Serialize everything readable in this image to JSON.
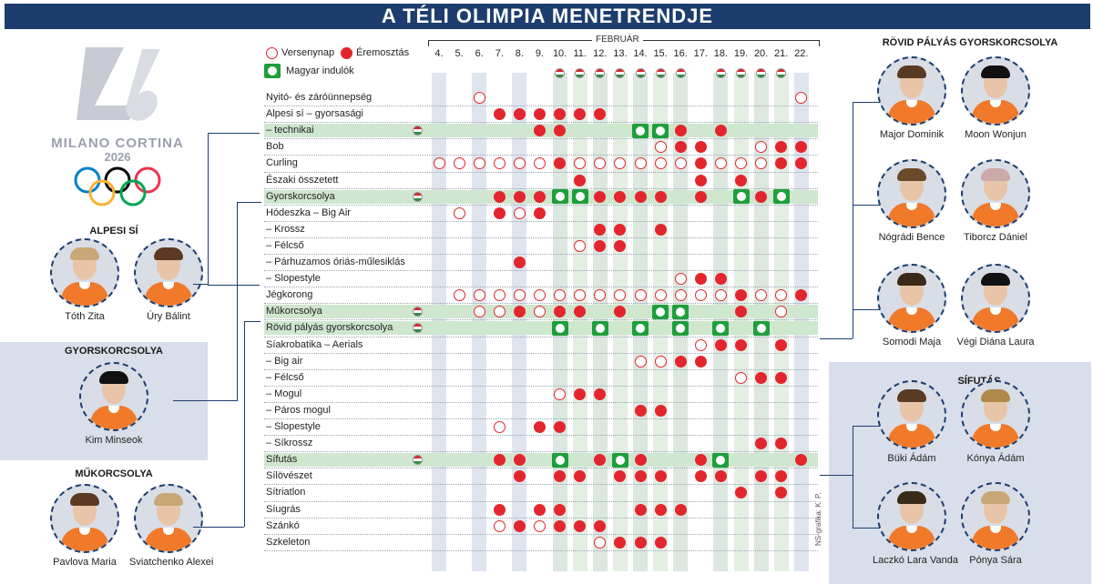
{
  "title": "A TÉLI OLIMPIA MENETRENDJE",
  "logo": {
    "line1": "MILANO CORTINA",
    "line2": "2026"
  },
  "legend": {
    "competition_day": "Versenynap",
    "medal_event": "Éremosztás",
    "hungarian": "Magyar indulók"
  },
  "month": "FEBRUÁR",
  "days": [
    "4.",
    "5.",
    "6.",
    "7.",
    "8.",
    "9.",
    "10.",
    "11.",
    "12.",
    "13.",
    "14.",
    "15.",
    "16.",
    "17.",
    "18.",
    "19.",
    "20.",
    "21.",
    "22."
  ],
  "credit": "NS-grafika: K. P.",
  "colors": {
    "title_bg": "#1d3d6e",
    "medal": "#e3262d",
    "hungarian": "#1f9e3c",
    "row_highlight": "#cfe6cf"
  },
  "events": [
    {
      "name": "Nyitó- és záróünnepség",
      "hu": false,
      "marks": {
        "6.": "c",
        "22.": "c"
      }
    },
    {
      "name": "Alpesi sí – gyorsasági",
      "hu": false,
      "marks": {
        "7.": "f",
        "8.": "f",
        "9.": "f",
        "10.": "f",
        "11.": "f",
        "12.": "f"
      }
    },
    {
      "name": "– technikai",
      "hu": true,
      "marks": {
        "9.": "f",
        "10.": "f",
        "14.": "h",
        "15.": "h",
        "16.": "f",
        "18.": "f"
      }
    },
    {
      "name": "Bob",
      "hu": false,
      "marks": {
        "15.": "c",
        "16.": "f",
        "17.": "f",
        "20.": "c",
        "21.": "f",
        "22.": "f"
      }
    },
    {
      "name": "Curling",
      "hu": false,
      "marks": {
        "4.": "c",
        "5.": "c",
        "6.": "c",
        "7.": "c",
        "8.": "c",
        "9.": "c",
        "10.": "f",
        "11.": "c",
        "12.": "c",
        "13.": "c",
        "14.": "c",
        "15.": "c",
        "16.": "c",
        "17.": "f",
        "18.": "c",
        "19.": "c",
        "20.": "c",
        "21.": "f",
        "22.": "f"
      }
    },
    {
      "name": "Északi összetett",
      "hu": false,
      "marks": {
        "11.": "f",
        "17.": "f",
        "19.": "f"
      }
    },
    {
      "name": "Gyorskorcsolya",
      "hu": true,
      "marks": {
        "7.": "f",
        "8.": "f",
        "9.": "f",
        "10.": "h",
        "11.": "h",
        "12.": "f",
        "13.": "f",
        "14.": "f",
        "15.": "f",
        "17.": "f",
        "19.": "h",
        "20.": "f",
        "21.": "h"
      }
    },
    {
      "name": "Hódeszka – Big Air",
      "hu": false,
      "marks": {
        "5.": "c",
        "7.": "f",
        "8.": "c",
        "9.": "f"
      }
    },
    {
      "name": "– Krossz",
      "hu": false,
      "marks": {
        "12.": "f",
        "13.": "f",
        "15.": "f"
      }
    },
    {
      "name": "– Félcső",
      "hu": false,
      "marks": {
        "11.": "c",
        "12.": "f",
        "13.": "f"
      }
    },
    {
      "name": "– Párhuzamos óriás-műlesiklás",
      "hu": false,
      "marks": {
        "8.": "f"
      }
    },
    {
      "name": "– Slopestyle",
      "hu": false,
      "marks": {
        "16.": "c",
        "17.": "f",
        "18.": "f"
      }
    },
    {
      "name": "Jégkorong",
      "hu": false,
      "marks": {
        "5.": "c",
        "6.": "c",
        "7.": "c",
        "8.": "c",
        "9.": "c",
        "10.": "c",
        "11.": "c",
        "12.": "c",
        "13.": "c",
        "14.": "c",
        "15.": "c",
        "16.": "c",
        "17.": "c",
        "18.": "c",
        "19.": "f",
        "20.": "c",
        "21.": "c",
        "22.": "f"
      }
    },
    {
      "name": "Műkorcsolya",
      "hu": true,
      "marks": {
        "6.": "c",
        "7.": "c",
        "8.": "f",
        "9.": "c",
        "10.": "f",
        "11.": "f",
        "13.": "f",
        "15.": "h",
        "16.": "h",
        "19.": "f",
        "21.": "c"
      }
    },
    {
      "name": "Rövid pályás gyorskorcsolya",
      "hu": true,
      "marks": {
        "10.": "h",
        "12.": "h",
        "14.": "h",
        "16.": "h",
        "18.": "h",
        "20.": "h"
      }
    },
    {
      "name": "Síakrobatika – Aerials",
      "hu": false,
      "marks": {
        "17.": "c",
        "18.": "f",
        "19.": "f",
        "21.": "f"
      }
    },
    {
      "name": "– Big air",
      "hu": false,
      "marks": {
        "14.": "c",
        "15.": "c",
        "16.": "f",
        "17.": "f"
      }
    },
    {
      "name": "– Félcső",
      "hu": false,
      "marks": {
        "19.": "c",
        "20.": "f",
        "21.": "f"
      }
    },
    {
      "name": "– Mogul",
      "hu": false,
      "marks": {
        "10.": "c",
        "11.": "f",
        "12.": "f"
      }
    },
    {
      "name": "– Páros mogul",
      "hu": false,
      "marks": {
        "14.": "f",
        "15.": "f"
      }
    },
    {
      "name": "– Slopestyle",
      "hu": false,
      "marks": {
        "7.": "c",
        "9.": "f",
        "10.": "f"
      }
    },
    {
      "name": "– Síkrossz",
      "hu": false,
      "marks": {
        "20.": "f",
        "21.": "f"
      }
    },
    {
      "name": "Sífutás",
      "hu": true,
      "marks": {
        "7.": "f",
        "8.": "f",
        "10.": "h",
        "12.": "f",
        "13.": "h",
        "14.": "f",
        "17.": "f",
        "18.": "h",
        "22.": "f"
      }
    },
    {
      "name": "Sílövészet",
      "hu": false,
      "marks": {
        "8.": "f",
        "10.": "f",
        "11.": "f",
        "13.": "f",
        "14.": "f",
        "15.": "f",
        "17.": "f",
        "18.": "f",
        "20.": "f",
        "21.": "f"
      }
    },
    {
      "name": "Sítriatlon",
      "hu": false,
      "marks": {
        "19.": "f",
        "21.": "f"
      }
    },
    {
      "name": "Síugrás",
      "hu": false,
      "marks": {
        "7.": "f",
        "9.": "f",
        "10.": "f",
        "14.": "f",
        "15.": "f",
        "16.": "f"
      }
    },
    {
      "name": "Szánkó",
      "hu": false,
      "marks": {
        "7.": "c",
        "8.": "f",
        "9.": "c",
        "10.": "f",
        "11.": "f",
        "12.": "f"
      }
    },
    {
      "name": "Szkeleton",
      "hu": false,
      "marks": {
        "12.": "c",
        "13.": "f",
        "14.": "f",
        "15.": "f"
      }
    }
  ],
  "sections": {
    "alpine": {
      "title": "ALPESI SÍ",
      "athletes": [
        "Tóth Zita",
        "Úry Bálint"
      ]
    },
    "speed": {
      "title": "GYORSKORCSOLYA",
      "athletes": [
        "Kim Minseok"
      ]
    },
    "figure": {
      "title": "MŰKORCSOLYA",
      "athletes": [
        "Pavlova Maria",
        "Sviatchenko Alexei"
      ]
    },
    "short_track": {
      "title": "RÖVID PÁLYÁS GYORSKORCSOLYA",
      "athletes": [
        "Major Dominik",
        "Moon Wonjun",
        "Nógrádi Bence",
        "Tiborcz Dániel",
        "Somodi Maja",
        "Végi Diána Laura"
      ]
    },
    "cross_country": {
      "title": "SÍFUTÁS",
      "athletes": [
        "Büki Ádám",
        "Kónya Ádám",
        "Laczkó Lara Vanda",
        "Pónya Sára"
      ]
    }
  }
}
